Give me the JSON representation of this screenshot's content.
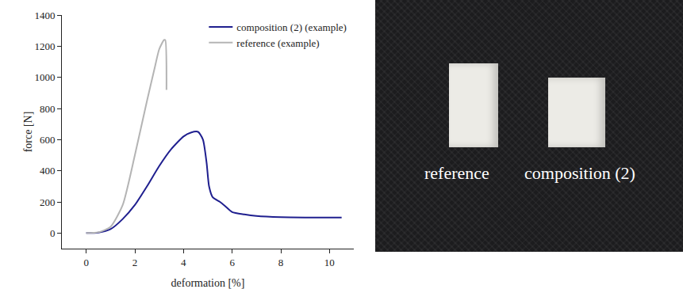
{
  "chart_data": {
    "type": "line",
    "x_label": "deformation [%]",
    "y_label": "force [N]",
    "xlim": [
      -1,
      11
    ],
    "xticks": [
      0,
      2,
      4,
      6,
      8,
      10
    ],
    "ylim": [
      -100,
      1400
    ],
    "yticks": [
      0,
      200,
      400,
      600,
      800,
      1000,
      1200,
      1400
    ],
    "grid": false,
    "legend": "top right",
    "series": [
      {
        "name": "composition (2) (example)",
        "color": "#1f1f8f",
        "line_style": "solid",
        "x": [
          0,
          0.5,
          1,
          1.5,
          2,
          2.5,
          3,
          3.5,
          4,
          4.3,
          4.6,
          4.8,
          4.95,
          5.05,
          5.2,
          5.5,
          5.7,
          6,
          6.5,
          7,
          8,
          9,
          10,
          10.5
        ],
        "values": [
          0,
          3,
          25,
          90,
          180,
          300,
          430,
          540,
          620,
          645,
          650,
          600,
          450,
          300,
          230,
          200,
          175,
          135,
          120,
          110,
          102,
          100,
          100,
          100
        ]
      },
      {
        "name": "reference (example)",
        "color": "#b4b4b4",
        "line_style": "solid",
        "x": [
          0,
          0.5,
          1,
          1.5,
          2,
          2.5,
          2.8,
          3,
          3.2,
          3.25,
          3.3
        ],
        "values": [
          0,
          5,
          40,
          180,
          500,
          850,
          1050,
          1180,
          1240,
          1240,
          920
        ]
      }
    ]
  },
  "photo": {
    "labels": [
      "reference",
      "composition (2)"
    ]
  }
}
